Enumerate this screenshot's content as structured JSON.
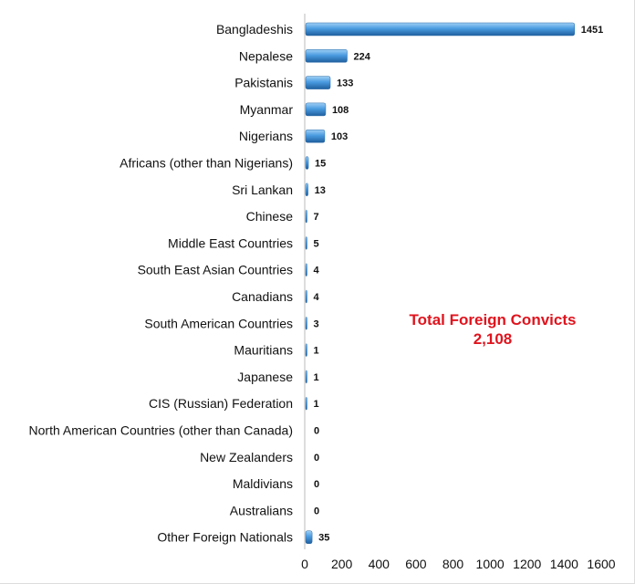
{
  "chart_data": {
    "type": "bar",
    "orientation": "horizontal",
    "categories": [
      "Bangladeshis",
      "Nepalese",
      "Pakistanis",
      "Myanmar",
      "Nigerians",
      "Africans (other than Nigerians)",
      "Sri Lankan",
      "Chinese",
      "Middle East Countries",
      "South East Asian Countries",
      "Canadians",
      "South American Countries",
      "Mauritians",
      "Japanese",
      "CIS (Russian) Federation",
      "North American Countries (other than Canada)",
      "New Zealanders",
      "Maldivians",
      "Australians",
      "Other Foreign Nationals"
    ],
    "values": [
      1451,
      224,
      133,
      108,
      103,
      15,
      13,
      7,
      5,
      4,
      4,
      3,
      1,
      1,
      1,
      0,
      0,
      0,
      0,
      35
    ],
    "xlim": [
      0,
      1600
    ],
    "xticks": [
      0,
      200,
      400,
      600,
      800,
      1000,
      1200,
      1400,
      1600
    ],
    "grid": false,
    "bar_color": "#3f8fd2",
    "annotation": {
      "title": "Total Foreign Convicts",
      "value": "2,108",
      "color": "#e0141e"
    }
  }
}
